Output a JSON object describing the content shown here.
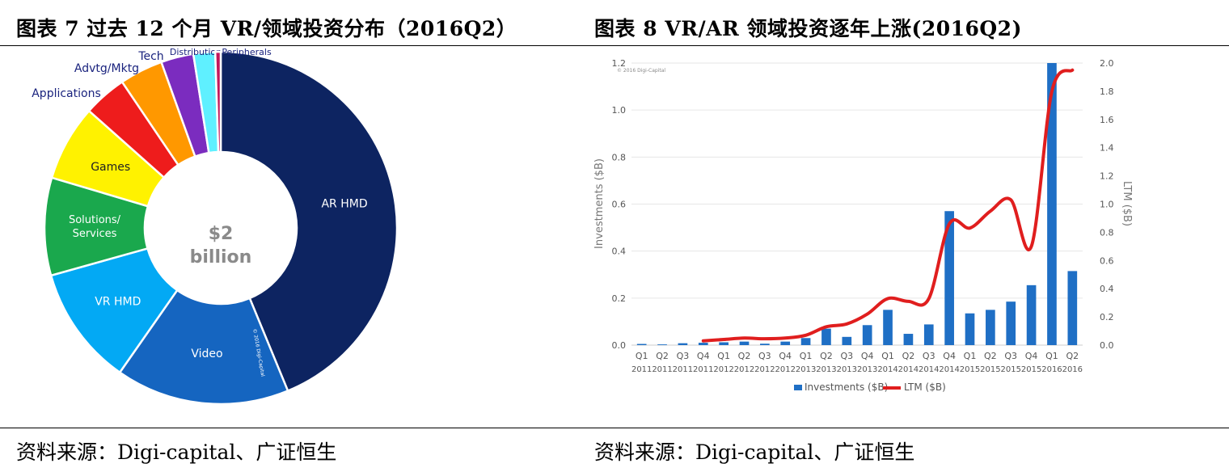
{
  "left_title": "图表 7  过去 12 个月 VR/领域投资分布（2016Q2）",
  "right_title": "图表 8 VR/AR 领域投资逐年上涨(2016Q2)",
  "left_source": "资料来源：Digi-capital、广证恒生",
  "right_source": "资料来源：Digi-capital、广证恒生",
  "chart_data": [
    {
      "type": "pie",
      "donut": true,
      "center_text": [
        "$2",
        "billion"
      ],
      "watermark": "© 2016 Digi-Capital",
      "slices": [
        {
          "label": "AR HMD",
          "value": 44.0,
          "color": "#0d2461",
          "label_color": "#ffffff"
        },
        {
          "label": "Video",
          "value": 16.0,
          "color": "#1565c0",
          "label_color": "#ffffff"
        },
        {
          "label": "VR HMD",
          "value": 11.0,
          "color": "#03a9f4",
          "label_color": "#ffffff"
        },
        {
          "label": "Solutions/ Services",
          "value": 9.0,
          "color": "#1aa84d",
          "label_color": "#ffffff"
        },
        {
          "label": "Games",
          "value": 7.0,
          "color": "#fff200",
          "label_color": "#222222"
        },
        {
          "label": "Applications",
          "value": 4.0,
          "color": "#ee1c1c",
          "label_color": "#1a237e"
        },
        {
          "label": "Advtg/Mktg",
          "value": 4.0,
          "color": "#ff9800",
          "label_color": "#1a237e"
        },
        {
          "label": "Tech",
          "value": 3.0,
          "color": "#7b2cbf",
          "label_color": "#1a237e"
        },
        {
          "label": "Distribution",
          "value": 2.0,
          "color": "#5ff0ff",
          "label_color": "#1a237e"
        },
        {
          "label": "Peripherals",
          "value": 0.5,
          "color": "#c2185b",
          "label_color": "#1a237e"
        }
      ]
    },
    {
      "type": "bar+line",
      "categories": [
        "Q1 2011",
        "Q2 2011",
        "Q3 2011",
        "Q4 2011",
        "Q1 2012",
        "Q2 2012",
        "Q3 2012",
        "Q4 2012",
        "Q1 2013",
        "Q2 2013",
        "Q3 2013",
        "Q4 2013",
        "Q1 2014",
        "Q2 2014",
        "Q3 2014",
        "Q4 2014",
        "Q1 2015",
        "Q2 2015",
        "Q3 2015",
        "Q4 2015",
        "Q1 2016",
        "Q2 2016"
      ],
      "series": [
        {
          "name": "Investments ($B)",
          "type": "bar",
          "axis": "left",
          "color": "#1f6fc5",
          "values": [
            0.005,
            0.003,
            0.008,
            0.01,
            0.012,
            0.015,
            0.006,
            0.015,
            0.03,
            0.07,
            0.035,
            0.085,
            0.15,
            0.048,
            0.088,
            0.57,
            0.135,
            0.15,
            0.185,
            0.255,
            1.2,
            0.315
          ]
        },
        {
          "name": "LTM ($B)",
          "type": "line",
          "axis": "right",
          "color": "#e01e1e",
          "start_index": 3,
          "values": [
            null,
            null,
            null,
            0.03,
            0.04,
            0.05,
            0.045,
            0.05,
            0.07,
            0.13,
            0.15,
            0.22,
            0.33,
            0.31,
            0.33,
            0.86,
            0.83,
            0.95,
            1.03,
            0.7,
            1.8,
            1.95
          ]
        }
      ],
      "y_left": {
        "label": "Investments ($B)",
        "range": [
          0,
          1.2
        ],
        "ticks": [
          "0.0",
          "0.2",
          "0.4",
          "0.6",
          "0.8",
          "1.0",
          "1.2"
        ]
      },
      "y_right": {
        "label": "LTM ($B)",
        "range": [
          0,
          2.0
        ],
        "ticks": [
          "0.0",
          "0.2",
          "0.4",
          "0.6",
          "0.8",
          "1.0",
          "1.2",
          "1.4",
          "1.6",
          "1.8",
          "2.0"
        ]
      },
      "legend": {
        "position": "bottom",
        "items": [
          "Investments ($B)",
          "LTM ($B)"
        ]
      },
      "watermark": "© 2016 Digi-Capital"
    }
  ]
}
